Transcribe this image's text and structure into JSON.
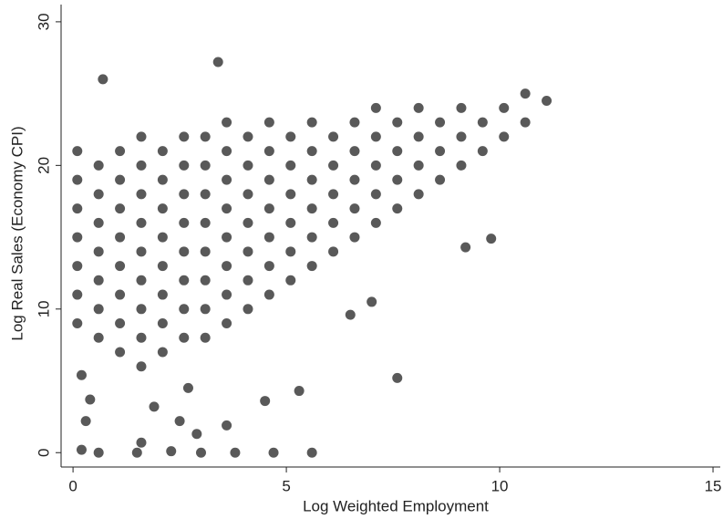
{
  "chart_data": {
    "type": "scatter",
    "x_label": "Log Weighted Employment",
    "y_label": "Log Real Sales (Economy CPI)",
    "xlim": [
      -0.28,
      15.17
    ],
    "ylim": [
      -1.0,
      31.2
    ],
    "xticks": [
      0,
      5,
      10,
      15
    ],
    "yticks": [
      0,
      10,
      20,
      30
    ],
    "grid": false,
    "series": [
      {
        "color": "#595959",
        "x": [
          0.1,
          0.1,
          0.1,
          0.1,
          0.1,
          0.1,
          0.1,
          0.6,
          0.6,
          0.6,
          0.6,
          0.6,
          0.6,
          0.6,
          1.1,
          1.1,
          1.1,
          1.1,
          1.1,
          1.1,
          1.1,
          1.1,
          1.6,
          1.6,
          1.6,
          1.6,
          1.6,
          1.6,
          1.6,
          1.6,
          1.6,
          2.1,
          2.1,
          2.1,
          2.1,
          2.1,
          2.1,
          2.1,
          2.1,
          2.6,
          2.6,
          2.6,
          2.6,
          2.6,
          2.6,
          2.6,
          2.6,
          3.1,
          3.1,
          3.1,
          3.1,
          3.1,
          3.1,
          3.1,
          3.1,
          3.6,
          3.6,
          3.6,
          3.6,
          3.6,
          3.6,
          3.6,
          3.6,
          4.1,
          4.1,
          4.1,
          4.1,
          4.1,
          4.1,
          4.1,
          4.6,
          4.6,
          4.6,
          4.6,
          4.6,
          4.6,
          4.6,
          5.1,
          5.1,
          5.1,
          5.1,
          5.1,
          5.1,
          5.6,
          5.6,
          5.6,
          5.6,
          5.6,
          5.6,
          6.1,
          6.1,
          6.1,
          6.1,
          6.1,
          6.6,
          6.6,
          6.6,
          6.6,
          6.6,
          7.1,
          7.1,
          7.1,
          7.1,
          7.1,
          7.6,
          7.6,
          7.6,
          7.6,
          8.1,
          8.1,
          8.1,
          8.1,
          8.6,
          8.6,
          8.6,
          9.1,
          9.1,
          9.1,
          9.6,
          9.6,
          10.1,
          10.1,
          10.6,
          10.6,
          11.1,
          0.7,
          3.4,
          0.6,
          1.5,
          2.3,
          3.0,
          3.8,
          4.7,
          5.6,
          0.2,
          7.6,
          9.8,
          9.2,
          7.0,
          4.5,
          5.3,
          3.6,
          0.4,
          2.7,
          1.6,
          2.5,
          6.5,
          0.2,
          0.3,
          1.9,
          2.9
        ],
        "y": [
          9,
          11,
          13,
          15,
          17,
          19,
          21,
          8,
          10,
          12,
          14,
          16,
          18,
          20,
          7,
          9,
          11,
          13,
          15,
          17,
          19,
          21,
          6,
          8,
          10,
          12,
          14,
          16,
          18,
          20,
          22,
          7,
          9,
          11,
          13,
          15,
          17,
          19,
          21,
          8,
          10,
          12,
          14,
          16,
          18,
          20,
          22,
          8,
          10,
          12,
          14,
          16,
          18,
          20,
          22,
          9,
          11,
          13,
          15,
          17,
          19,
          21,
          23,
          10,
          12,
          14,
          16,
          18,
          20,
          22,
          11,
          13,
          15,
          17,
          19,
          21,
          23,
          12,
          14,
          16,
          18,
          20,
          22,
          13,
          15,
          17,
          19,
          21,
          23,
          14,
          16,
          18,
          20,
          22,
          15,
          17,
          19,
          21,
          23,
          16,
          18,
          20,
          22,
          24,
          17,
          19,
          21,
          23,
          18,
          20,
          22,
          24,
          19,
          21,
          23,
          20,
          22,
          24,
          21,
          23,
          22,
          24,
          23,
          25,
          24.5,
          26,
          27.2,
          0,
          0,
          0.1,
          0,
          0,
          0,
          0,
          0.2,
          5.2,
          14.9,
          14.3,
          10.5,
          3.6,
          4.3,
          1.9,
          3.7,
          4.5,
          0.7,
          2.2,
          9.6,
          5.4,
          2.2,
          3.2,
          1.3
        ]
      }
    ]
  }
}
